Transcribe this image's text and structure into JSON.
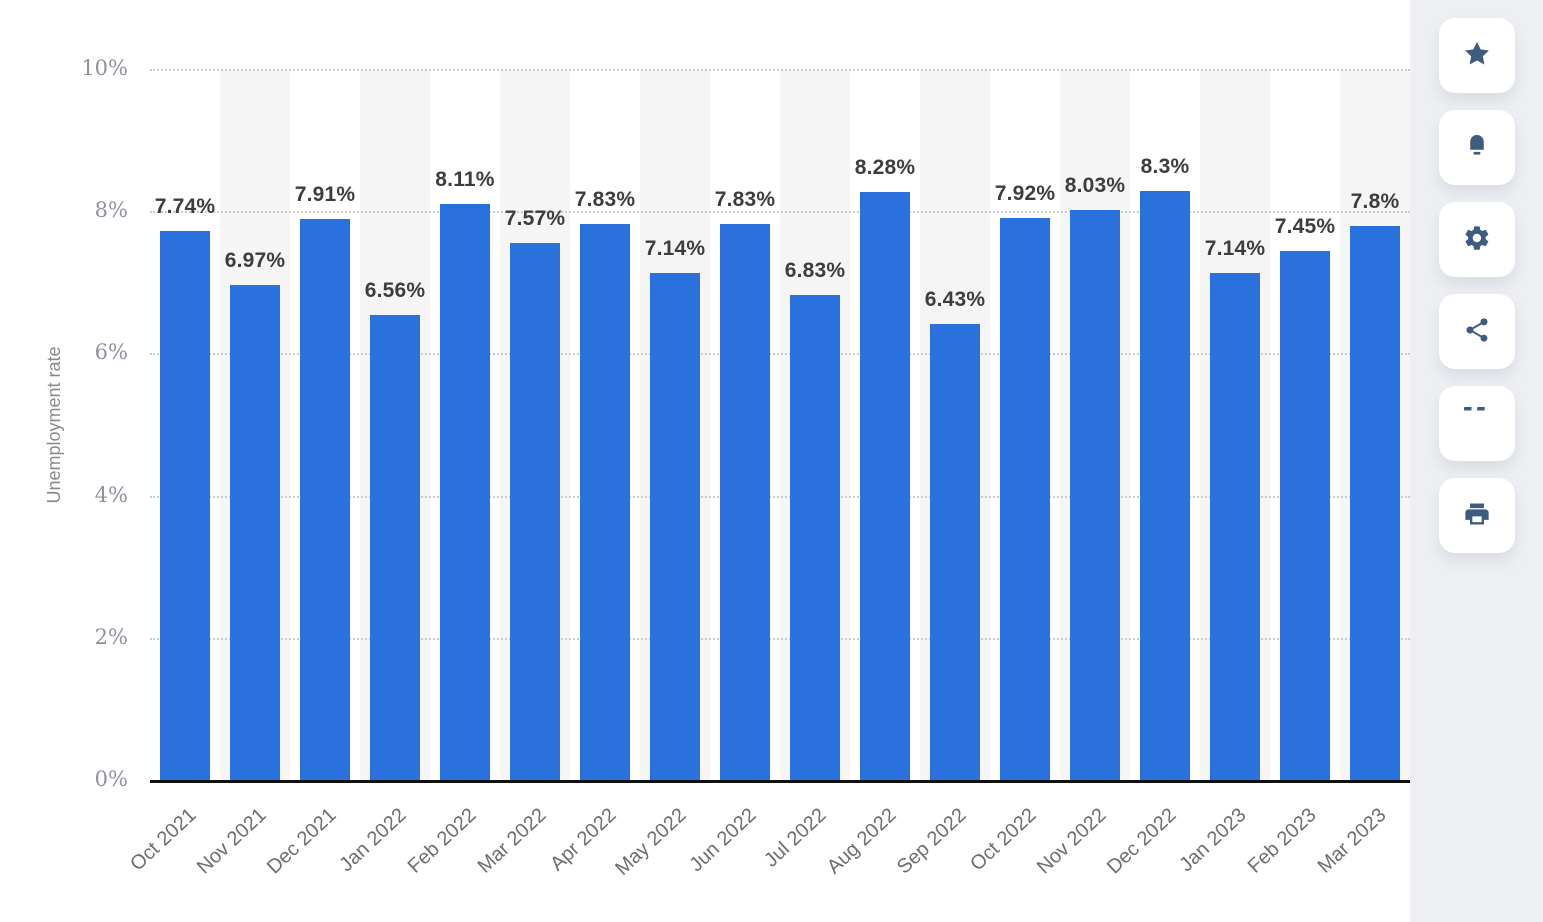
{
  "chart_data": {
    "type": "bar",
    "title": "",
    "ylabel": "Unemployment rate",
    "xlabel": "",
    "categories": [
      "Oct 2021",
      "Nov 2021",
      "Dec 2021",
      "Jan 2022",
      "Feb 2022",
      "Mar 2022",
      "Apr 2022",
      "May 2022",
      "Jun 2022",
      "Jul 2022",
      "Aug 2022",
      "Sep 2022",
      "Oct 2022",
      "Nov 2022",
      "Dec 2022",
      "Jan 2023",
      "Feb 2023",
      "Mar 2023"
    ],
    "values": [
      7.74,
      6.97,
      7.91,
      6.56,
      8.11,
      7.57,
      7.83,
      7.14,
      7.83,
      6.83,
      8.28,
      6.43,
      7.92,
      8.03,
      8.3,
      7.14,
      7.45,
      7.8
    ],
    "value_labels": [
      "7.74%",
      "6.97%",
      "7.91%",
      "6.56%",
      "8.11%",
      "7.57%",
      "7.83%",
      "7.14%",
      "7.83%",
      "6.83%",
      "8.28%",
      "6.43%",
      "7.92%",
      "8.03%",
      "8.3%",
      "7.14%",
      "7.45%",
      "7.8%"
    ],
    "ytick_labels": [
      "0%",
      "2%",
      "4%",
      "6%",
      "8%",
      "10%"
    ],
    "ytick_values": [
      0,
      2,
      4,
      6,
      8,
      10
    ],
    "ylim": [
      0,
      10
    ],
    "grid": "horizontal-dotted",
    "legend": "none",
    "background_stripes": "alternating vertical bands behind every second bar"
  },
  "colors": {
    "bar": "#2b71dd",
    "icon": "#3e5c80",
    "stripe": "#f5f5f6",
    "value_label": "#3d3d3d",
    "xtick": "#6e6e6e",
    "ytick": "#8d929d",
    "axis_line": "#111111",
    "rail_background": "#edeff3"
  },
  "sidebar": {
    "buttons": [
      {
        "name": "favorite-button",
        "icon": "star-icon"
      },
      {
        "name": "notifications-button",
        "icon": "bell-icon"
      },
      {
        "name": "settings-button",
        "icon": "gear-icon"
      },
      {
        "name": "share-button",
        "icon": "share-icon"
      },
      {
        "name": "cite-button",
        "icon": "quote-icon"
      },
      {
        "name": "print-button",
        "icon": "print-icon"
      }
    ],
    "quote_glyph": "“"
  }
}
